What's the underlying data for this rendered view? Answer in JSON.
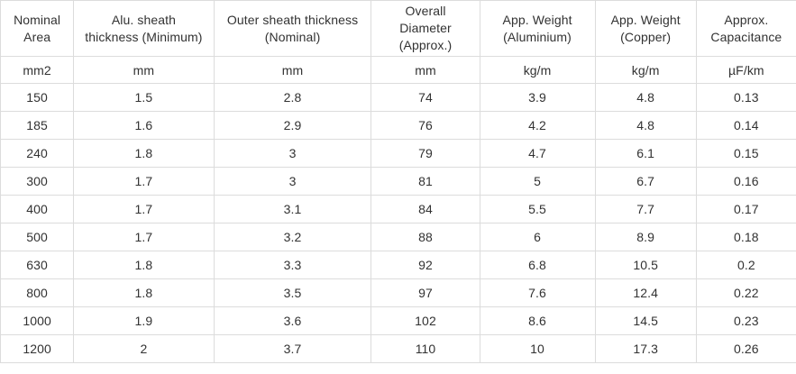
{
  "table": {
    "columns": [
      {
        "label": "Nominal Area",
        "unit": "mm2"
      },
      {
        "label": "Alu. sheath thickness (Minimum)",
        "unit": "mm"
      },
      {
        "label": "Outer sheath thickness (Nominal)",
        "unit": "mm"
      },
      {
        "label": "Overall Diameter (Approx.)",
        "unit": "mm"
      },
      {
        "label": "App. Weight (Aluminium)",
        "unit": "kg/m"
      },
      {
        "label": "App. Weight (Copper)",
        "unit": "kg/m"
      },
      {
        "label": "Approx. Capacitance",
        "unit": "µF/km"
      }
    ],
    "rows": [
      [
        "150",
        "1.5",
        "2.8",
        "74",
        "3.9",
        "4.8",
        "0.13"
      ],
      [
        "185",
        "1.6",
        "2.9",
        "76",
        "4.2",
        "4.8",
        "0.14"
      ],
      [
        "240",
        "1.8",
        "3",
        "79",
        "4.7",
        "6.1",
        "0.15"
      ],
      [
        "300",
        "1.7",
        "3",
        "81",
        "5",
        "6.7",
        "0.16"
      ],
      [
        "400",
        "1.7",
        "3.1",
        "84",
        "5.5",
        "7.7",
        "0.17"
      ],
      [
        "500",
        "1.7",
        "3.2",
        "88",
        "6",
        "8.9",
        "0.18"
      ],
      [
        "630",
        "1.8",
        "3.3",
        "92",
        "6.8",
        "10.5",
        "0.2"
      ],
      [
        "800",
        "1.8",
        "3.5",
        "97",
        "7.6",
        "12.4",
        "0.22"
      ],
      [
        "1000",
        "1.9",
        "3.6",
        "102",
        "8.6",
        "14.5",
        "0.23"
      ],
      [
        "1200",
        "2",
        "3.7",
        "110",
        "10",
        "17.3",
        "0.26"
      ]
    ]
  },
  "colors": {
    "border": "#dcdcdc",
    "text": "#323232",
    "background": "#ffffff"
  }
}
